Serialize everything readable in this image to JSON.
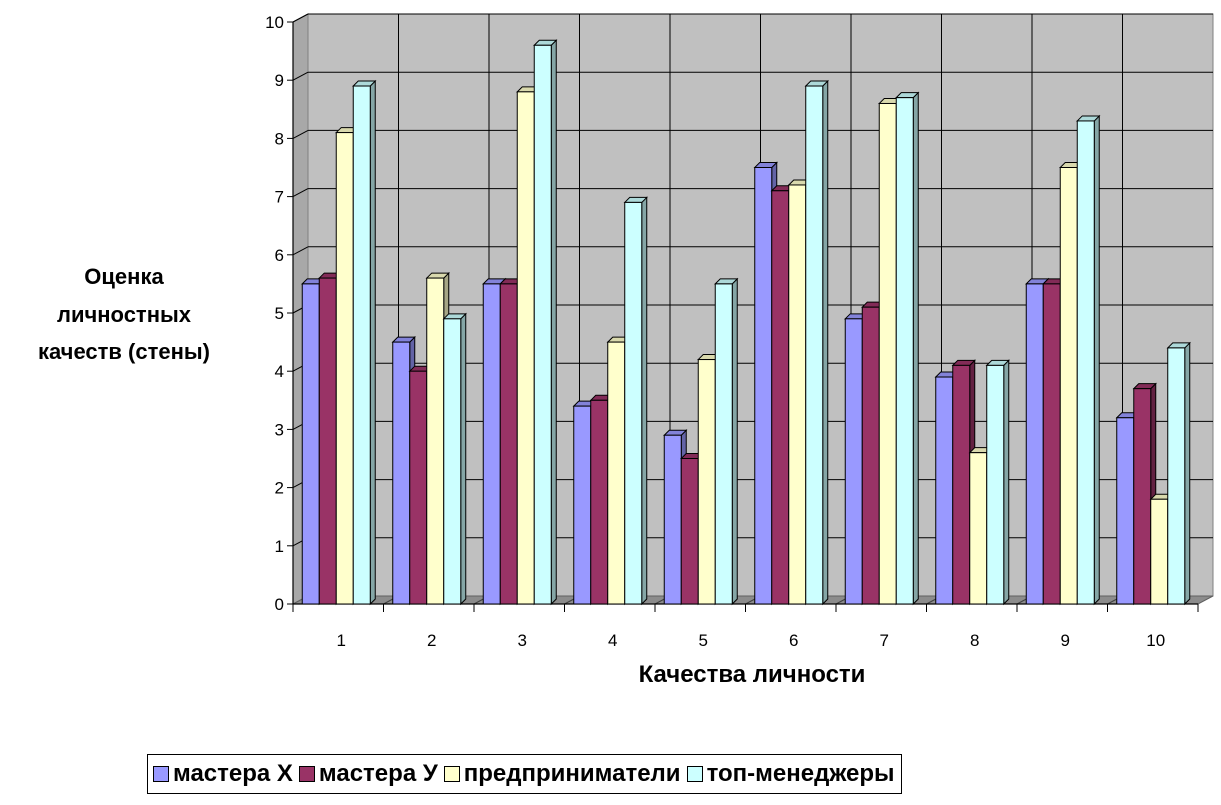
{
  "chart_data": {
    "type": "bar",
    "categories": [
      "1",
      "2",
      "3",
      "4",
      "5",
      "6",
      "7",
      "8",
      "9",
      "10"
    ],
    "series": [
      {
        "name": "мастера Х",
        "color": "#9999ff",
        "values": [
          5.5,
          4.5,
          5.5,
          3.4,
          2.9,
          7.5,
          4.9,
          3.9,
          5.5,
          3.2
        ]
      },
      {
        "name": "мастера У",
        "color": "#993366",
        "values": [
          5.6,
          4.0,
          5.5,
          3.5,
          2.5,
          7.1,
          5.1,
          4.1,
          5.5,
          3.7
        ]
      },
      {
        "name": "предприниматели",
        "color": "#ffffcc",
        "values": [
          8.1,
          5.6,
          8.8,
          4.5,
          4.2,
          7.2,
          8.6,
          2.6,
          7.5,
          1.8
        ]
      },
      {
        "name": "топ-менеджеры",
        "color": "#ccffff",
        "values": [
          8.9,
          4.9,
          9.6,
          6.9,
          5.5,
          8.9,
          8.7,
          4.1,
          8.3,
          4.4
        ]
      }
    ],
    "yticks": [
      "0",
      "1",
      "2",
      "3",
      "4",
      "5",
      "6",
      "7",
      "8",
      "9",
      "10"
    ],
    "ylim": [
      0,
      10
    ],
    "xlabel": "Качества личности",
    "ylabel": [
      "Оценка",
      "личностных",
      "качеств (стены)"
    ],
    "grid": true,
    "legend_position": "bottom",
    "wall_color": "#c0c0c0"
  }
}
